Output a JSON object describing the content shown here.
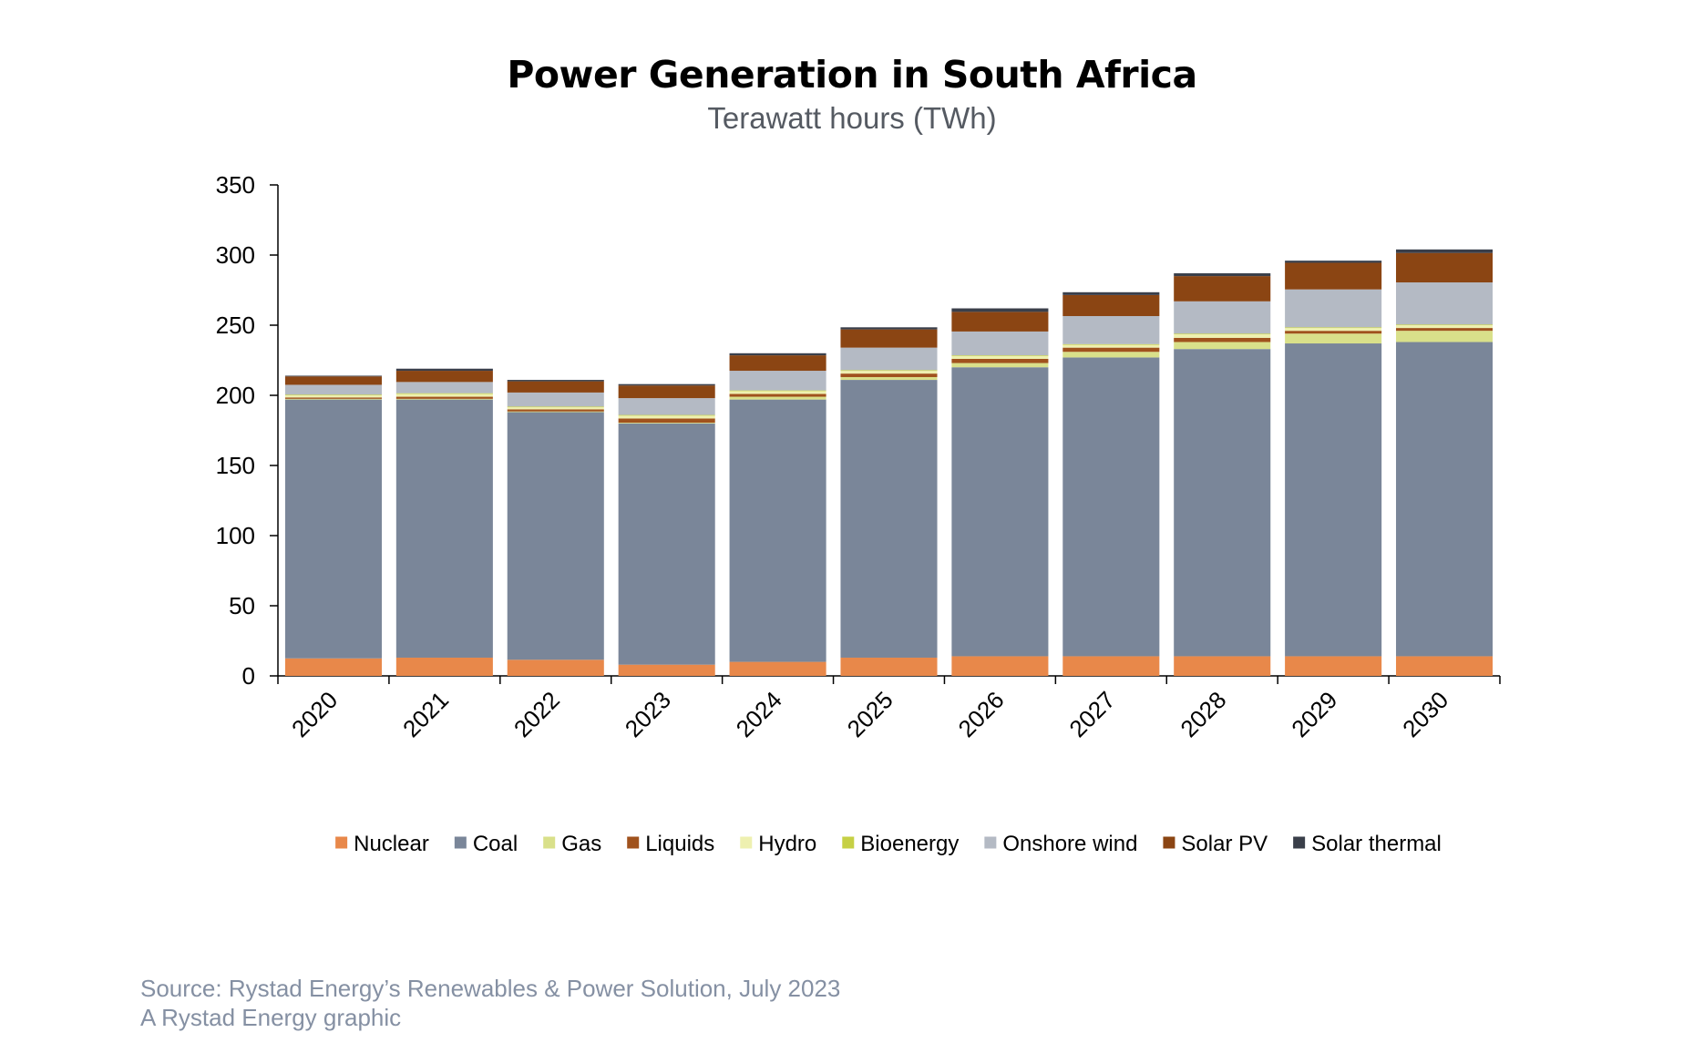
{
  "title": "Power Generation in South Africa",
  "subtitle": "Terawatt hours (TWh)",
  "source": "Source: Rystad Energy’s Renewables & Power Solution, July 2023",
  "credit": "A Rystad Energy graphic",
  "chart_data": {
    "type": "bar",
    "stacked": true,
    "title": "Power Generation in South Africa",
    "subtitle": "Terawatt hours (TWh)",
    "categories": [
      "2020",
      "2021",
      "2022",
      "2023",
      "2024",
      "2025",
      "2026",
      "2027",
      "2028",
      "2029",
      "2030"
    ],
    "ylim": [
      0,
      350
    ],
    "yticks": [
      0,
      50,
      100,
      150,
      200,
      250,
      300,
      350
    ],
    "grid": false,
    "legend_position": "bottom",
    "series": [
      {
        "name": "Nuclear",
        "color": "#e8884a",
        "values": [
          12.5,
          13,
          11.5,
          8,
          10,
          13,
          14,
          14,
          14,
          14,
          14
        ]
      },
      {
        "name": "Coal",
        "color": "#7a8699",
        "values": [
          184.5,
          184,
          176.5,
          172,
          187,
          198,
          206,
          213,
          219,
          223,
          224
        ]
      },
      {
        "name": "Gas",
        "color": "#d9e08a",
        "values": [
          0.5,
          0.5,
          0.5,
          0.5,
          2,
          2,
          3,
          4,
          5,
          7,
          8
        ]
      },
      {
        "name": "Liquids",
        "color": "#a0521d",
        "values": [
          1,
          1.5,
          1.5,
          3,
          2,
          2.5,
          3,
          3,
          3,
          2,
          2
        ]
      },
      {
        "name": "Hydro",
        "color": "#eef0b0",
        "values": [
          1.5,
          2,
          1.5,
          2,
          2,
          2,
          2,
          2,
          2.5,
          2,
          2
        ]
      },
      {
        "name": "Bioenergy",
        "color": "#c6d045",
        "values": [
          0.5,
          0.5,
          0.5,
          0.5,
          0.5,
          0.5,
          0.5,
          0.5,
          0.5,
          0.5,
          0.5
        ]
      },
      {
        "name": "Onshore wind",
        "color": "#b4bac4",
        "values": [
          7,
          8,
          10,
          12,
          14,
          16,
          17,
          20,
          23,
          27,
          30
        ]
      },
      {
        "name": "Solar PV",
        "color": "#8b4513",
        "values": [
          6,
          8,
          8,
          9,
          11,
          13,
          14,
          15,
          18,
          19,
          21
        ]
      },
      {
        "name": "Solar thermal",
        "color": "#3a3f4a",
        "values": [
          0.5,
          1.5,
          1,
          1,
          1.5,
          1.5,
          2.5,
          2,
          2,
          1.5,
          2.5
        ]
      }
    ]
  }
}
